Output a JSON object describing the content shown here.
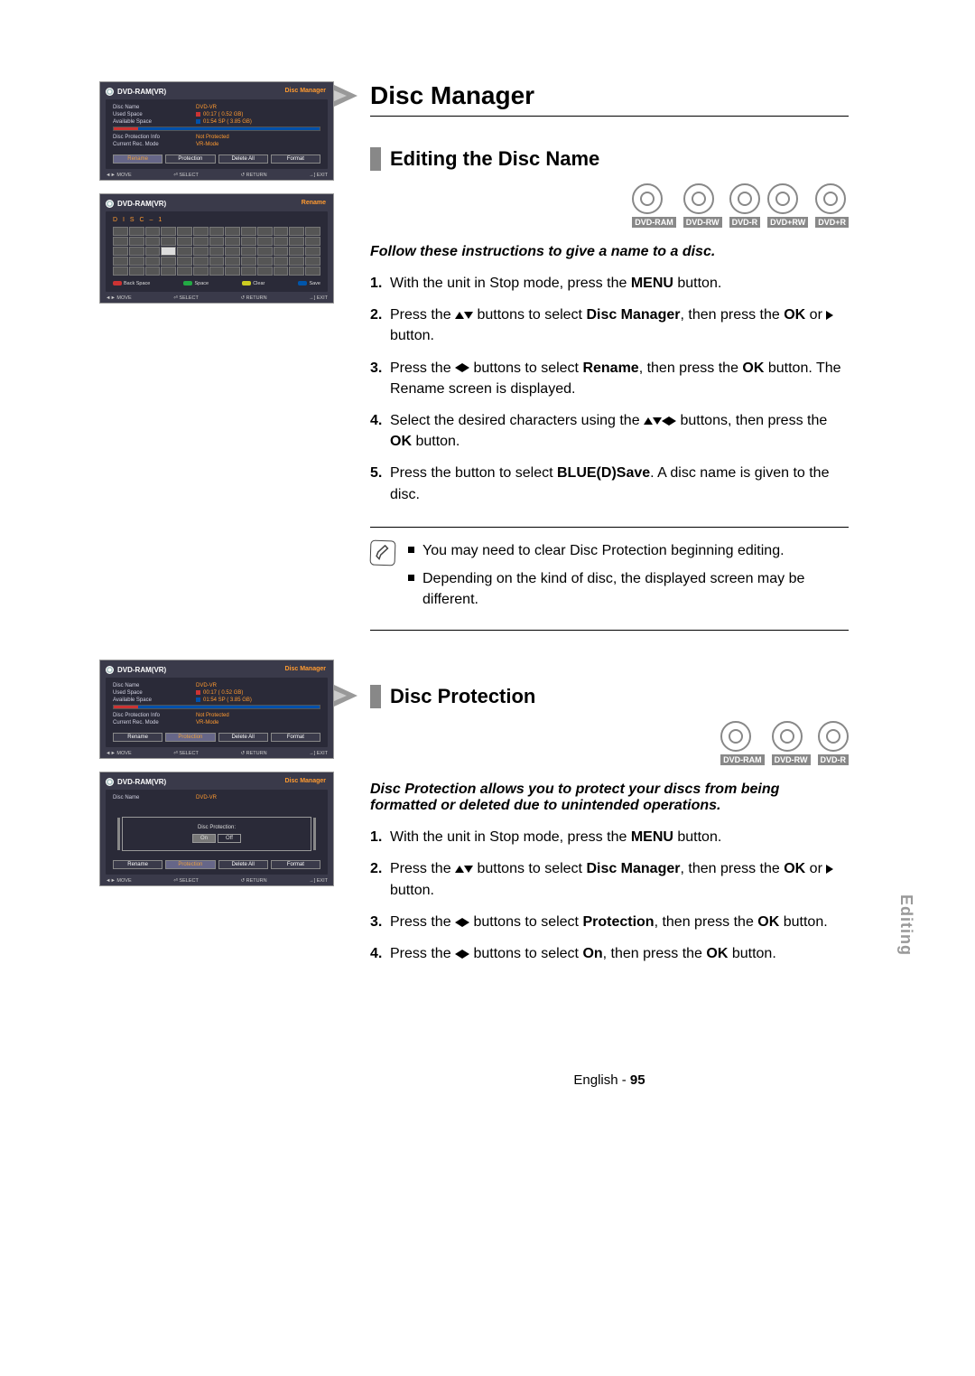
{
  "page": {
    "title": "Disc Manager",
    "footer_lang": "English",
    "footer_page": "95",
    "side_tab": "Editing"
  },
  "section1": {
    "heading": "Editing the Disc Name",
    "intro": "Follow these instructions to give a name to a disc.",
    "disc_types": [
      "DVD-RAM",
      "DVD-RW",
      "DVD-R",
      "DVD+RW",
      "DVD+R"
    ],
    "steps": [
      {
        "pre": "With the unit in Stop mode, press the ",
        "b1": "MENU",
        "post": " button."
      },
      {
        "pre": "Press the ",
        "arrows": "ud",
        "mid": " buttons to select ",
        "b1": "Disc Manager",
        "mid2": ", then press the ",
        "b2": "OK",
        "mid3": " or ",
        "arrow2": "r",
        "post": " button."
      },
      {
        "pre": "Press the ",
        "arrows": "lr",
        "mid": " buttons to select ",
        "b1": "Rename",
        "mid2": ", then press the ",
        "b2": "OK",
        "post": " button. The Rename screen is displayed."
      },
      {
        "pre": "Select the desired characters using the ",
        "arrows": "udlr",
        "mid": " buttons, then press the ",
        "b1": "OK",
        "post": " button."
      },
      {
        "pre": "Press the ",
        "b1": "BLUE(D)",
        "mid": " button to select ",
        "b2": "Save",
        "post": ". A disc name is given to the disc."
      }
    ],
    "notes": [
      "You may need to clear Disc Protection beginning editing.",
      "Depending on the kind of disc, the displayed screen may be different."
    ]
  },
  "section2": {
    "heading": "Disc Protection",
    "intro": "Disc Protection allows you to protect your discs from being formatted or deleted due to unintended operations.",
    "disc_types": [
      "DVD-RAM",
      "DVD-RW",
      "DVD-R"
    ],
    "steps": [
      {
        "pre": "With the unit in Stop mode, press the ",
        "b1": "MENU",
        "post": " button."
      },
      {
        "pre": "Press the ",
        "arrows": "ud",
        "mid": " buttons to select ",
        "b1": "Disc Manager",
        "mid2": ", then press the ",
        "b2": "OK",
        "mid3": " or ",
        "arrow2": "r",
        "post": " button."
      },
      {
        "pre": "Press the ",
        "arrows": "lr",
        "mid": " buttons to select ",
        "b1": "Protection",
        "mid2": ", then press the ",
        "b2": "OK",
        "post": " button."
      },
      {
        "pre": "Press the ",
        "arrows": "lr",
        "mid": " buttons to select ",
        "b1": "On",
        "mid2": ", then press the ",
        "b2": "OK",
        "post": " button."
      }
    ]
  },
  "osd": {
    "title_device": "DVD-RAM(VR)",
    "tag_manager": "Disc Manager",
    "tag_rename": "Rename",
    "disc_name_lbl": "Disc Name",
    "disc_name_val": "DVD-VR",
    "used_lbl": "Used Space",
    "used_val": "00:17  ( 0.52 GB)",
    "avail_lbl": "Available Space",
    "avail_val": "01:54 SP  ( 3.85 GB)",
    "prot_lbl": "Disc Protection Info",
    "prot_val": "Not Protected",
    "mode_lbl": "Current Rec. Mode",
    "mode_val": "VR-Mode",
    "btns": [
      "Rename",
      "Protection",
      "Delete All",
      "Format"
    ],
    "nav_move": "MOVE",
    "nav_select": "SELECT",
    "nav_return": "RETURN",
    "nav_exit": "EXIT",
    "kb_name": "D I S C – 1",
    "kb_back": "Back Space",
    "kb_space": "Space",
    "kb_clear": "Clear",
    "kb_save": "Save",
    "protect_title": "Disc Protection:",
    "on": "On",
    "off": "Off"
  }
}
